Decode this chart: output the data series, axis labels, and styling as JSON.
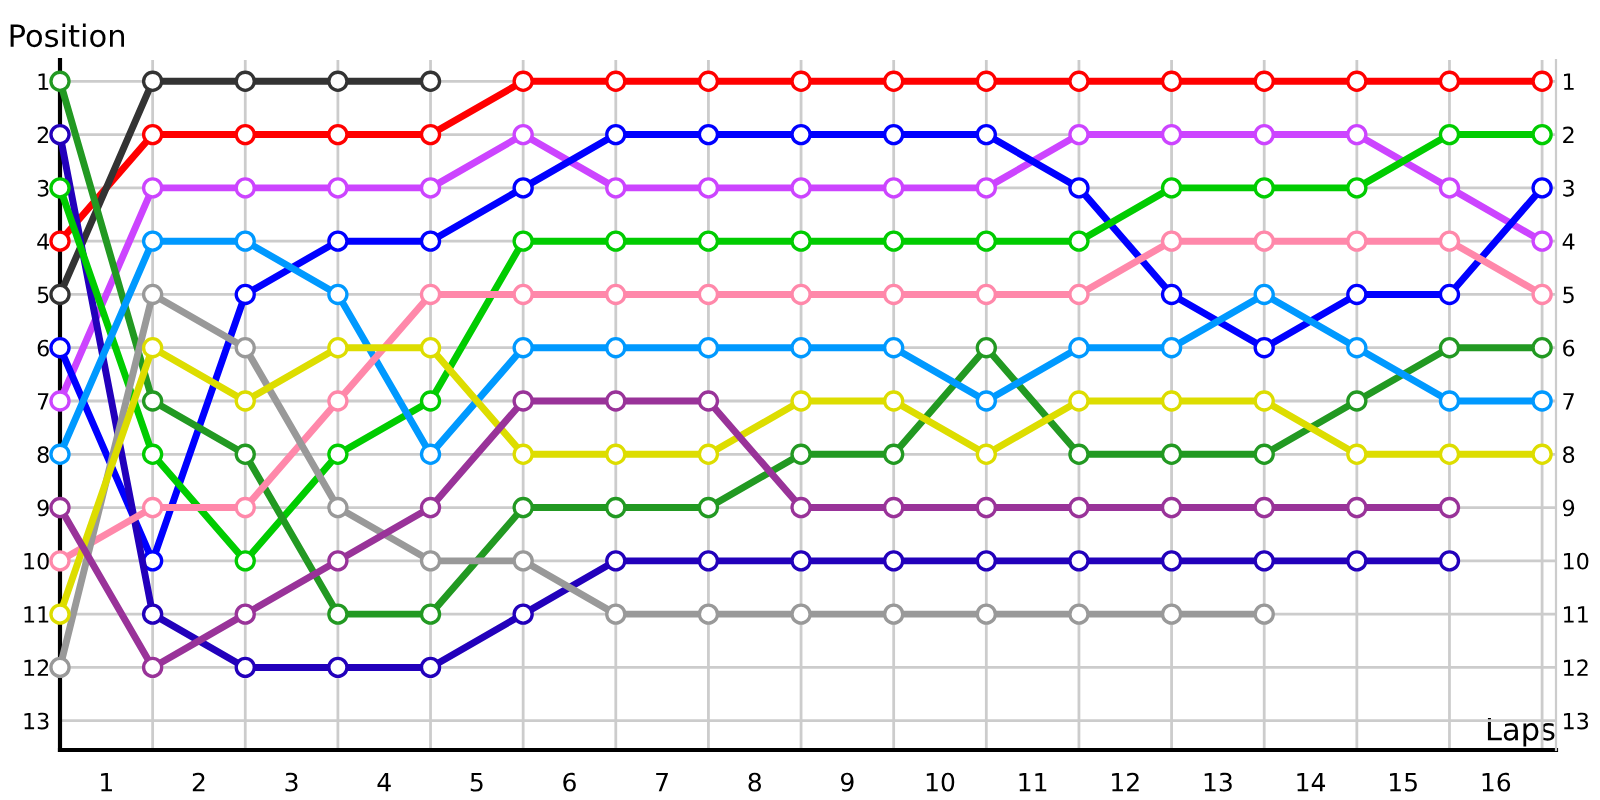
{
  "chart_data": {
    "type": "line",
    "xlabel": "Laps",
    "ylabel": "Position",
    "x": [
      0,
      1,
      2,
      3,
      4,
      5,
      6,
      7,
      8,
      9,
      10,
      11,
      12,
      13,
      14,
      15,
      16
    ],
    "series": [
      {
        "color": "#ff0000",
        "values": [
          4,
          2,
          2,
          2,
          2,
          1,
          1,
          1,
          1,
          1,
          1,
          1,
          1,
          1,
          1,
          1,
          1
        ]
      },
      {
        "color": "#333333",
        "values": [
          5,
          1,
          1,
          1,
          1,
          null,
          null,
          null,
          null,
          null,
          null,
          null,
          null,
          null,
          null,
          null,
          null
        ]
      },
      {
        "color": "#cc44ff",
        "values": [
          7,
          3,
          3,
          3,
          3,
          2,
          3,
          3,
          3,
          3,
          3,
          2,
          2,
          2,
          2,
          3,
          4
        ]
      },
      {
        "color": "#0000ff",
        "values": [
          6,
          10,
          5,
          4,
          4,
          3,
          2,
          2,
          2,
          2,
          2,
          3,
          5,
          6,
          5,
          5,
          3
        ]
      },
      {
        "color": "#2200bb",
        "values": [
          2,
          11,
          12,
          12,
          12,
          11,
          10,
          10,
          10,
          10,
          10,
          10,
          10,
          10,
          10,
          10,
          null
        ]
      },
      {
        "color": "#00cc00",
        "values": [
          3,
          8,
          10,
          8,
          7,
          4,
          4,
          4,
          4,
          4,
          4,
          4,
          3,
          3,
          3,
          2,
          2
        ]
      },
      {
        "color": "#229922",
        "values": [
          1,
          7,
          8,
          11,
          11,
          9,
          9,
          9,
          8,
          8,
          6,
          8,
          8,
          8,
          7,
          6,
          6
        ]
      },
      {
        "color": "#0099ff",
        "values": [
          8,
          4,
          4,
          5,
          8,
          6,
          6,
          6,
          6,
          6,
          7,
          6,
          6,
          5,
          6,
          7,
          7
        ]
      },
      {
        "color": "#ff88aa",
        "values": [
          10,
          9,
          9,
          7,
          5,
          5,
          5,
          5,
          5,
          5,
          5,
          5,
          4,
          4,
          4,
          4,
          5
        ]
      },
      {
        "color": "#999999",
        "values": [
          12,
          5,
          6,
          9,
          10,
          10,
          11,
          11,
          11,
          11,
          11,
          11,
          11,
          11,
          null,
          null,
          null
        ]
      },
      {
        "color": "#dddd00",
        "values": [
          11,
          6,
          7,
          6,
          6,
          8,
          8,
          8,
          7,
          7,
          8,
          7,
          7,
          7,
          8,
          8,
          8
        ]
      },
      {
        "color": "#993399",
        "values": [
          9,
          12,
          11,
          10,
          9,
          7,
          7,
          7,
          9,
          9,
          9,
          9,
          9,
          9,
          9,
          9,
          null
        ]
      }
    ],
    "xlim": [
      0,
      16.15
    ],
    "xticks": [
      {
        "value": 0,
        "label": null
      },
      {
        "value": 1,
        "label": null
      },
      {
        "value": 2,
        "label": null
      },
      {
        "value": 3,
        "label": null
      },
      {
        "value": 4,
        "label": null
      },
      {
        "value": 5,
        "label": null
      },
      {
        "value": 6,
        "label": null
      },
      {
        "value": 7,
        "label": null
      },
      {
        "value": 8,
        "label": null
      },
      {
        "value": 9,
        "label": null
      },
      {
        "value": 10,
        "label": null
      },
      {
        "value": 11,
        "label": null
      },
      {
        "value": 12,
        "label": null
      },
      {
        "value": 13,
        "label": null
      },
      {
        "value": 14,
        "label": null
      },
      {
        "value": 15,
        "label": null
      },
      {
        "value": 16,
        "label": null
      },
      {
        "value": 0.5,
        "label": "1"
      },
      {
        "value": 1.5,
        "label": "2"
      },
      {
        "value": 2.5,
        "label": "3"
      },
      {
        "value": 3.5,
        "label": "4"
      },
      {
        "value": 4.5,
        "label": "5"
      },
      {
        "value": 5.5,
        "label": "6"
      },
      {
        "value": 6.5,
        "label": "7"
      },
      {
        "value": 7.5,
        "label": "8"
      },
      {
        "value": 8.5,
        "label": "9"
      },
      {
        "value": 9.5,
        "label": "10"
      },
      {
        "value": 10.5,
        "label": "11"
      },
      {
        "value": 11.5,
        "label": "12"
      },
      {
        "value": 12.5,
        "label": "13"
      },
      {
        "value": 13.5,
        "label": "14"
      },
      {
        "value": 14.5,
        "label": "15"
      },
      {
        "value": 15.5,
        "label": "16"
      }
    ],
    "ylim": [
      13.55,
      0.6
    ],
    "yticks": [
      1,
      2,
      3,
      4,
      5,
      6,
      7,
      8,
      9,
      10,
      11,
      12,
      13
    ],
    "y2lim": [
      13.55,
      0.6
    ],
    "y2ticks": [
      1,
      2,
      3,
      4,
      5,
      6,
      7,
      8,
      9,
      10,
      11,
      12,
      13
    ],
    "grid": true,
    "marker": "circle",
    "line_style": "solid"
  }
}
